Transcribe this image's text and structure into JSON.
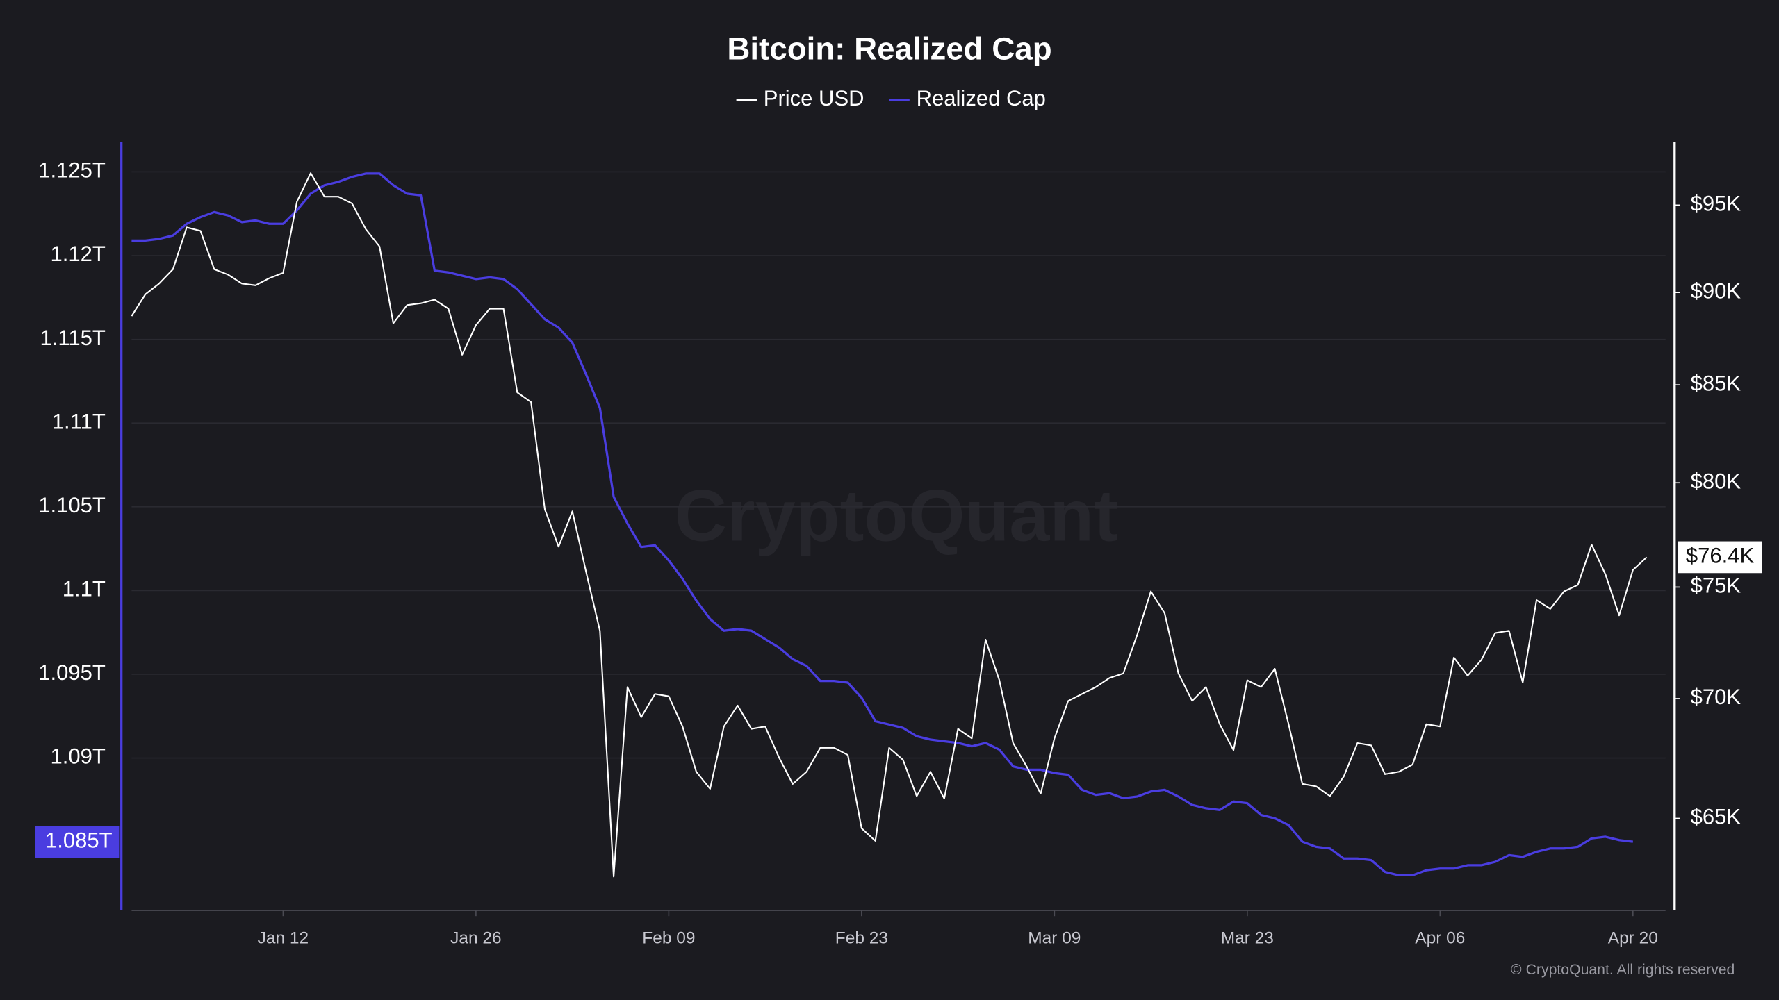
{
  "chart_data": {
    "type": "line",
    "title": "Bitcoin: Realized Cap",
    "watermark": "CryptoQuant",
    "copyright": "© CryptoQuant. All rights reserved",
    "categories": [
      null,
      null,
      null,
      null,
      null,
      null,
      null,
      null,
      null,
      null,
      null,
      "Jan 12",
      null,
      null,
      null,
      null,
      null,
      null,
      null,
      null,
      null,
      null,
      null,
      null,
      null,
      "Jan 26",
      null,
      null,
      null,
      null,
      null,
      null,
      null,
      null,
      null,
      null,
      null,
      null,
      null,
      "Feb 09",
      null,
      null,
      null,
      null,
      null,
      null,
      null,
      null,
      null,
      null,
      null,
      null,
      null,
      "Feb 23",
      null,
      null,
      null,
      null,
      null,
      null,
      null,
      null,
      null,
      null,
      null,
      null,
      null,
      "Mar 09",
      null,
      null,
      null,
      null,
      null,
      null,
      null,
      null,
      null,
      null,
      null,
      null,
      null,
      "Mar 23",
      null,
      null,
      null,
      null,
      null,
      null,
      null,
      null,
      null,
      null,
      null,
      null,
      null,
      "Apr 06",
      null,
      null,
      null,
      null,
      null,
      null,
      null,
      null,
      null,
      null,
      null,
      null,
      null,
      "Apr 20",
      null
    ],
    "series": [
      {
        "name": "Price USD",
        "color": "#ffffff",
        "axis": "y2",
        "values": [
          88700,
          89900,
          90500,
          91300,
          93700,
          93500,
          91300,
          91000,
          90500,
          90400,
          90800,
          91100,
          95200,
          96900,
          95500,
          95500,
          95100,
          93600,
          92600,
          88300,
          89300,
          89400,
          89600,
          89100,
          86600,
          88200,
          89100,
          89100,
          84600,
          84100,
          78700,
          76900,
          78600,
          75700,
          73000,
          62700,
          70500,
          69200,
          70200,
          70100,
          68800,
          66900,
          66200,
          68800,
          69700,
          68700,
          68800,
          67500,
          66400,
          66900,
          67900,
          67900,
          67600,
          64600,
          64100,
          67900,
          67400,
          65900,
          66900,
          65800,
          68700,
          68300,
          72600,
          70800,
          68100,
          67100,
          66000,
          68300,
          69900,
          70200,
          70500,
          70900,
          71100,
          72800,
          74800,
          73800,
          71100,
          69900,
          70500,
          68900,
          67800,
          70800,
          70500,
          71300,
          68900,
          66400,
          66300,
          65900,
          66700,
          68100,
          68000,
          66800,
          66900,
          67200,
          68900,
          68800,
          71800,
          71000,
          71700,
          72900,
          73000,
          70700,
          74400,
          74000,
          74800,
          75100,
          77000,
          75600,
          73700,
          75800,
          76400
        ]
      },
      {
        "name": "Realized Cap",
        "color": "#4a3de0",
        "axis": "y",
        "values": [
          1.1209,
          1.1209,
          1.121,
          1.1212,
          1.1219,
          1.1223,
          1.1226,
          1.1224,
          1.122,
          1.1221,
          1.1219,
          1.1219,
          1.1227,
          1.1237,
          1.1242,
          1.1244,
          1.1247,
          1.1249,
          1.1249,
          1.1242,
          1.1237,
          1.1236,
          1.1191,
          1.119,
          1.1188,
          1.1186,
          1.1187,
          1.1186,
          1.118,
          1.1171,
          1.1162,
          1.1157,
          1.1148,
          1.1129,
          1.1109,
          1.1056,
          1.104,
          1.1026,
          1.1027,
          1.1018,
          1.1007,
          1.0994,
          1.0983,
          1.0976,
          1.0977,
          1.0976,
          1.0971,
          1.0966,
          1.0959,
          1.0955,
          1.0946,
          1.0946,
          1.0945,
          1.0936,
          1.0922,
          1.092,
          1.0918,
          1.0913,
          1.0911,
          1.091,
          1.0909,
          1.0907,
          1.0909,
          1.0905,
          1.0895,
          1.0893,
          1.0893,
          1.0891,
          1.089,
          1.0881,
          1.0878,
          1.0879,
          1.0876,
          1.0877,
          1.088,
          1.0881,
          1.0877,
          1.0872,
          1.087,
          1.0869,
          1.0874,
          1.0873,
          1.0866,
          1.0864,
          1.086,
          1.085,
          1.0847,
          1.0846,
          1.084,
          1.084,
          1.0839,
          1.0832,
          1.083,
          1.083,
          1.0833,
          1.0834,
          1.0834,
          1.0836,
          1.0836,
          1.0838,
          1.0842,
          1.0841,
          1.0844,
          1.0846,
          1.0846,
          1.0847,
          1.0852,
          1.0853,
          1.0851,
          1.085,
          null
        ]
      }
    ],
    "ylim": [
      1.0809,
      1.1268
    ],
    "yticks": [
      {
        "value": 1.09,
        "label": "1.09T"
      },
      {
        "value": 1.095,
        "label": "1.095T"
      },
      {
        "value": 1.1,
        "label": "1.1T"
      },
      {
        "value": 1.105,
        "label": "1.105T"
      },
      {
        "value": 1.11,
        "label": "1.11T"
      },
      {
        "value": 1.115,
        "label": "1.115T"
      },
      {
        "value": 1.12,
        "label": "1.12T"
      },
      {
        "value": 1.125,
        "label": "1.125T"
      }
    ],
    "y2lim": [
      61400,
      98800
    ],
    "y2log": true,
    "y2ticks": [
      {
        "value": 65000,
        "label": "$65K"
      },
      {
        "value": 70000,
        "label": "$70K"
      },
      {
        "value": 75000,
        "label": "$75K"
      },
      {
        "value": 80000,
        "label": "$80K"
      },
      {
        "value": 85000,
        "label": "$85K"
      },
      {
        "value": 90000,
        "label": "$90K"
      },
      {
        "value": 95000,
        "label": "$95K"
      }
    ],
    "annotations": [
      {
        "axis": "y",
        "value": 1.085,
        "label": "1.085T"
      },
      {
        "axis": "y2",
        "value": 76400,
        "label": "$76.4K"
      }
    ],
    "grid": true,
    "legend": "top"
  }
}
